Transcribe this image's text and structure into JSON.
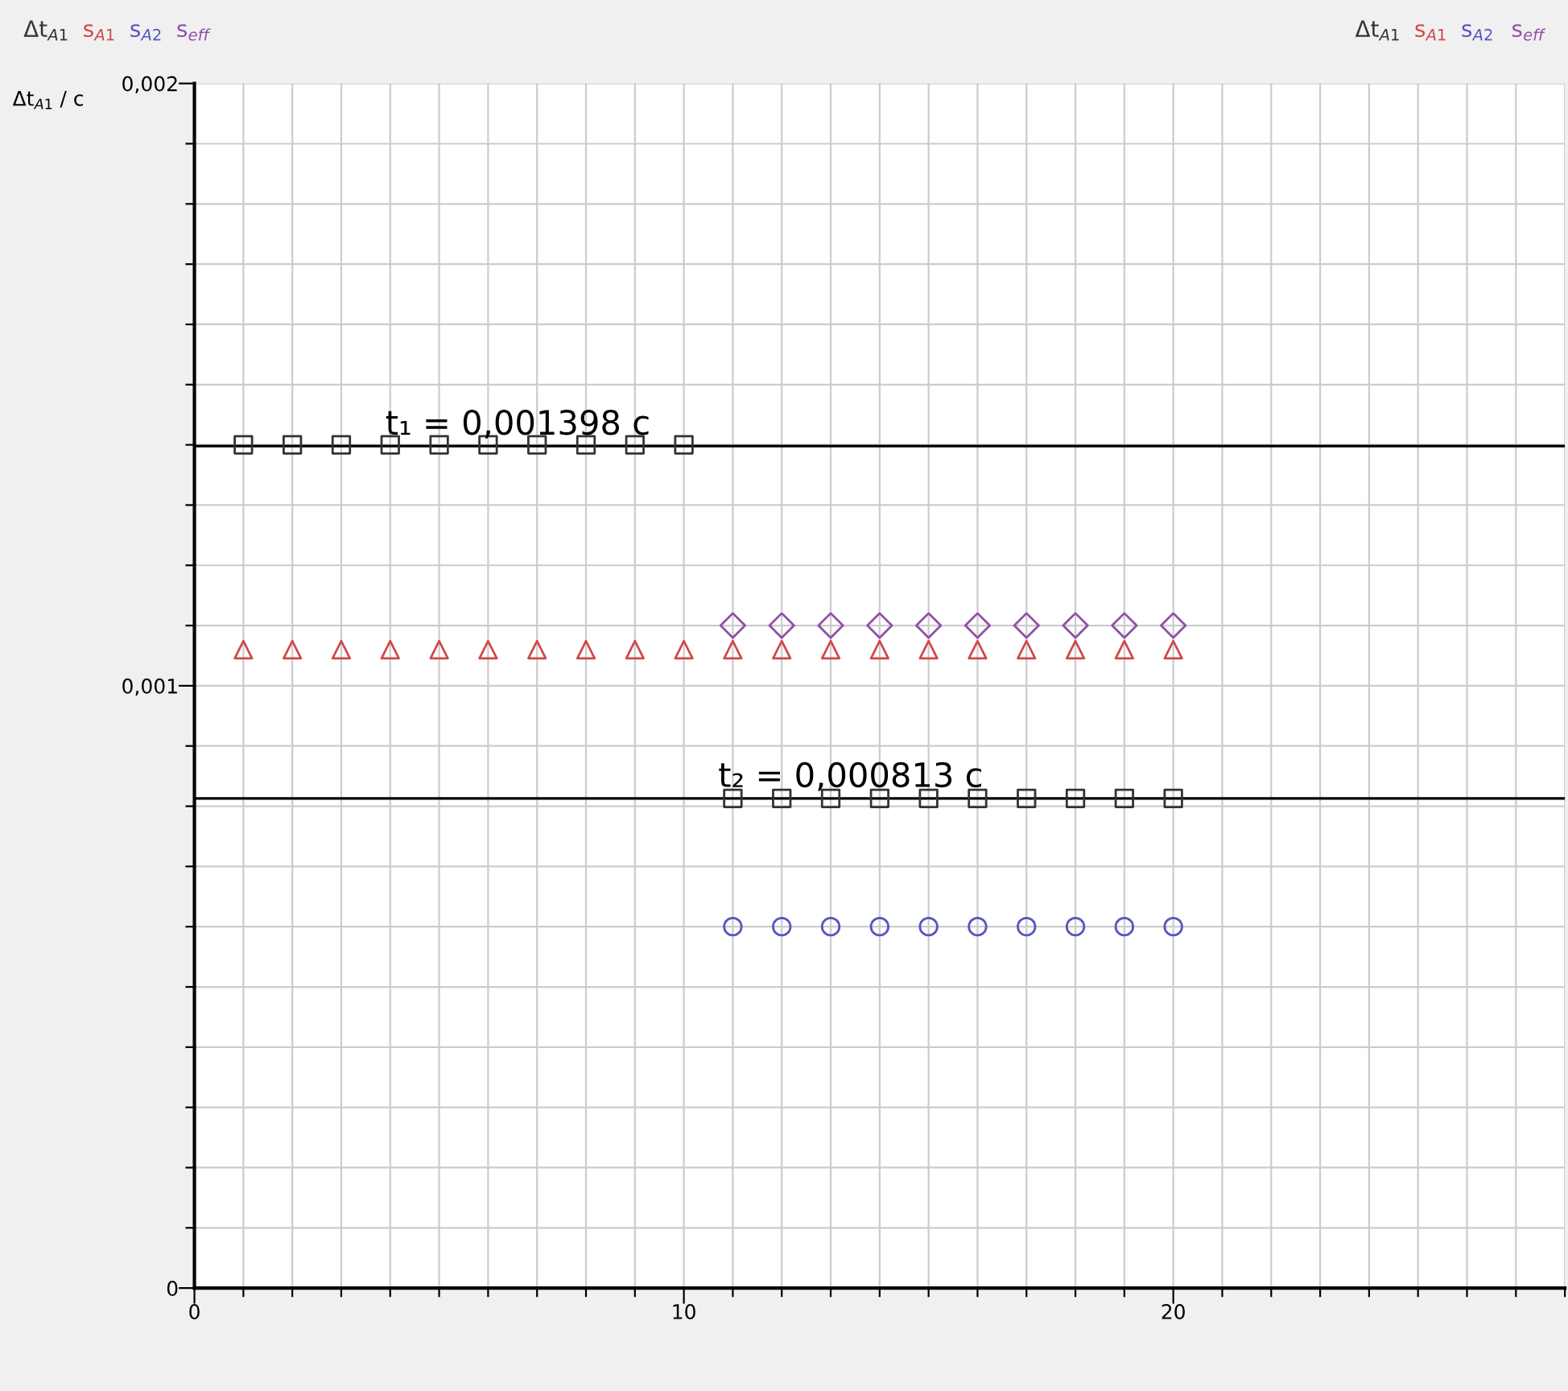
{
  "chart_data": {
    "type": "scatter",
    "ylabel": "Δt$_{A1}$ / c",
    "xlim": [
      0,
      28
    ],
    "xticks": [
      0,
      {
        "value": 1,
        "label": null
      },
      {
        "value": 2,
        "label": null
      },
      {
        "value": 3,
        "label": null
      },
      {
        "value": 4,
        "label": null
      },
      {
        "value": 5,
        "label": null
      },
      {
        "value": 6,
        "label": null
      },
      {
        "value": 7,
        "label": null
      },
      {
        "value": 8,
        "label": null
      },
      {
        "value": 9,
        "label": null
      },
      10,
      {
        "value": 11,
        "label": null
      },
      {
        "value": 12,
        "label": null
      },
      {
        "value": 13,
        "label": null
      },
      {
        "value": 14,
        "label": null
      },
      {
        "value": 15,
        "label": null
      },
      {
        "value": 16,
        "label": null
      },
      {
        "value": 17,
        "label": null
      },
      {
        "value": 18,
        "label": null
      },
      {
        "value": 19,
        "label": null
      },
      20,
      {
        "value": 21,
        "label": null
      },
      {
        "value": 22,
        "label": null
      },
      {
        "value": 23,
        "label": null
      },
      {
        "value": 24,
        "label": null
      },
      {
        "value": 25,
        "label": null
      },
      {
        "value": 26,
        "label": null
      },
      {
        "value": 27,
        "label": null
      },
      {
        "value": 28,
        "label": null
      }
    ],
    "ylim": [
      0,
      0.002
    ],
    "yticks": [
      {
        "value": 0,
        "label": "0"
      },
      {
        "value": 0.0001,
        "label": null
      },
      {
        "value": 0.0002,
        "label": null
      },
      {
        "value": 0.0003,
        "label": null
      },
      {
        "value": 0.0004,
        "label": null
      },
      {
        "value": 0.0005,
        "label": null
      },
      {
        "value": 0.0006,
        "label": null
      },
      {
        "value": 0.0007,
        "label": null
      },
      {
        "value": 0.0008,
        "label": null
      },
      {
        "value": 0.0009,
        "label": null
      },
      {
        "value": 0.001,
        "label": "0,001"
      },
      {
        "value": 0.0011,
        "label": null
      },
      {
        "value": 0.0012,
        "label": null
      },
      {
        "value": 0.0013,
        "label": null
      },
      {
        "value": 0.0014,
        "label": null
      },
      {
        "value": 0.0015,
        "label": null
      },
      {
        "value": 0.0016,
        "label": null
      },
      {
        "value": 0.0017,
        "label": null
      },
      {
        "value": 0.0018,
        "label": null
      },
      {
        "value": 0.0019,
        "label": null
      },
      {
        "value": 0.002,
        "label": "0,002"
      }
    ],
    "grid": true,
    "legend": "top",
    "series": [
      {
        "name": "Δt$_{A1}$",
        "color": "#333333",
        "marker": "square",
        "x": [
          1,
          2,
          3,
          4,
          5,
          6,
          7,
          8,
          9,
          10,
          11,
          12,
          13,
          14,
          15,
          16,
          17,
          18,
          19,
          20
        ],
        "values": [
          0.0014,
          0.0014,
          0.0014,
          0.0014,
          0.0014,
          0.0014,
          0.0014,
          0.0014,
          0.0014,
          0.0014,
          0.000813,
          0.000813,
          0.000813,
          0.000813,
          0.000813,
          0.000813,
          0.000813,
          0.000813,
          0.000813,
          0.000813
        ]
      },
      {
        "name": "s$_{A1}$",
        "color": "#d04848",
        "marker": "triangle",
        "x": [
          1,
          2,
          3,
          4,
          5,
          6,
          7,
          8,
          9,
          10,
          11,
          12,
          13,
          14,
          15,
          16,
          17,
          18,
          19,
          20
        ],
        "values": [
          0.00106,
          0.00106,
          0.00106,
          0.00106,
          0.00106,
          0.00106,
          0.00106,
          0.00106,
          0.00106,
          0.00106,
          0.00106,
          0.00106,
          0.00106,
          0.00106,
          0.00106,
          0.00106,
          0.00106,
          0.00106,
          0.00106,
          0.00106
        ]
      },
      {
        "name": "s$_{A2}$",
        "color": "#5555c0",
        "marker": "circle",
        "x": [
          11,
          12,
          13,
          14,
          15,
          16,
          17,
          18,
          19,
          20
        ],
        "values": [
          0.0006,
          0.0006,
          0.0006,
          0.0006,
          0.0006,
          0.0006,
          0.0006,
          0.0006,
          0.0006,
          0.0006
        ]
      },
      {
        "name": "s$_{eff}$",
        "color": "#9050a8",
        "marker": "diamond",
        "x": [
          11,
          12,
          13,
          14,
          15,
          16,
          17,
          18,
          19,
          20
        ],
        "values": [
          0.0011,
          0.0011,
          0.0011,
          0.0011,
          0.0011,
          0.0011,
          0.0011,
          0.0011,
          0.0011,
          0.0011
        ]
      }
    ],
    "ref_lines": [
      {
        "axis": "y",
        "value": 0.001398,
        "color": "#000000"
      },
      {
        "axis": "y",
        "value": 0.000813,
        "color": "#000000"
      }
    ],
    "annotations": [
      {
        "text": "t₁ = 0,001398 c",
        "x": 3.9,
        "y": 0.001398
      },
      {
        "text": "t₂ = 0,000813 c",
        "x": 10.7,
        "y": 0.000813
      }
    ]
  }
}
